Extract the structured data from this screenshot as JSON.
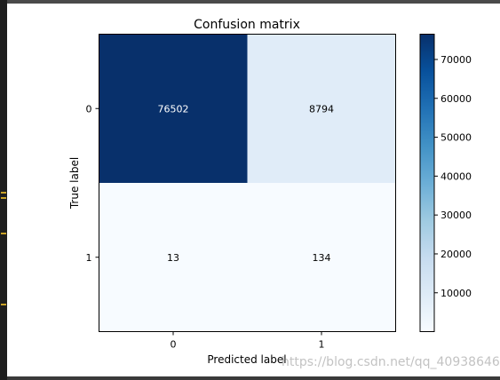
{
  "chart_data": {
    "type": "heatmap",
    "title": "Confusion matrix",
    "xlabel": "Predicted label",
    "ylabel": "True label",
    "x_categories": [
      "0",
      "1"
    ],
    "y_categories": [
      "0",
      "1"
    ],
    "matrix": [
      [
        76502,
        8794
      ],
      [
        13,
        134
      ]
    ],
    "colormap": "Blues",
    "colorbar": {
      "ticks": [
        10000,
        20000,
        30000,
        40000,
        50000,
        60000,
        70000
      ],
      "tick_labels": [
        "10000",
        "20000",
        "30000",
        "40000",
        "50000",
        "60000",
        "70000"
      ],
      "range": [
        13,
        76502
      ]
    },
    "cell_text_colors": {
      "dark": "#ffffff",
      "light": "#000000"
    }
  },
  "watermark": "https://blog.csdn.net/qq_40938646",
  "colors": {
    "ide_background": "#2b2b2b",
    "figure_background": "#ffffff",
    "blues_low": "#f7fbff",
    "blues_high": "#08306b"
  }
}
